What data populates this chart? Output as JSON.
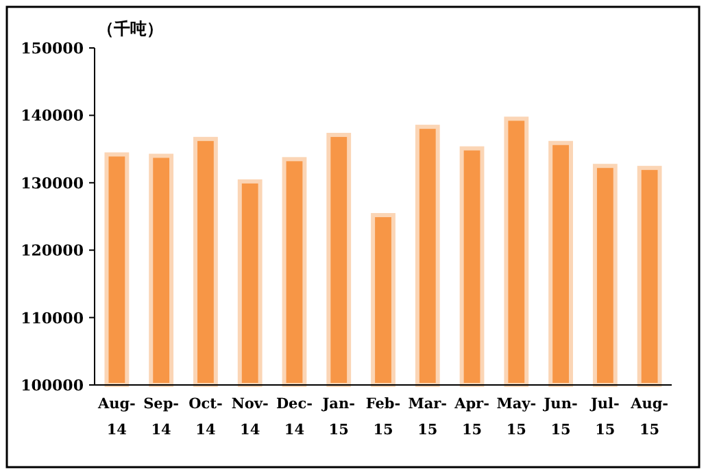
{
  "chart_data": {
    "type": "bar",
    "ylabel": "（千吨）",
    "categories": [
      "Aug-\n14",
      "Sep-\n14",
      "Oct-\n14",
      "Nov-\n14",
      "Dec-\n14",
      "Jan-\n15",
      "Feb-\n15",
      "Mar-\n15",
      "Apr-\n15",
      "May-\n15",
      "Jun-\n15",
      "Jul-\n15",
      "Aug-\n15"
    ],
    "values": [
      134200,
      134000,
      136500,
      130200,
      133500,
      137100,
      125200,
      138300,
      135100,
      139500,
      135900,
      132500,
      132200
    ],
    "color": "#f79646",
    "ylim": [
      100000,
      150000
    ],
    "yticks": [
      100000,
      110000,
      120000,
      130000,
      140000,
      150000
    ],
    "grid": false
  }
}
